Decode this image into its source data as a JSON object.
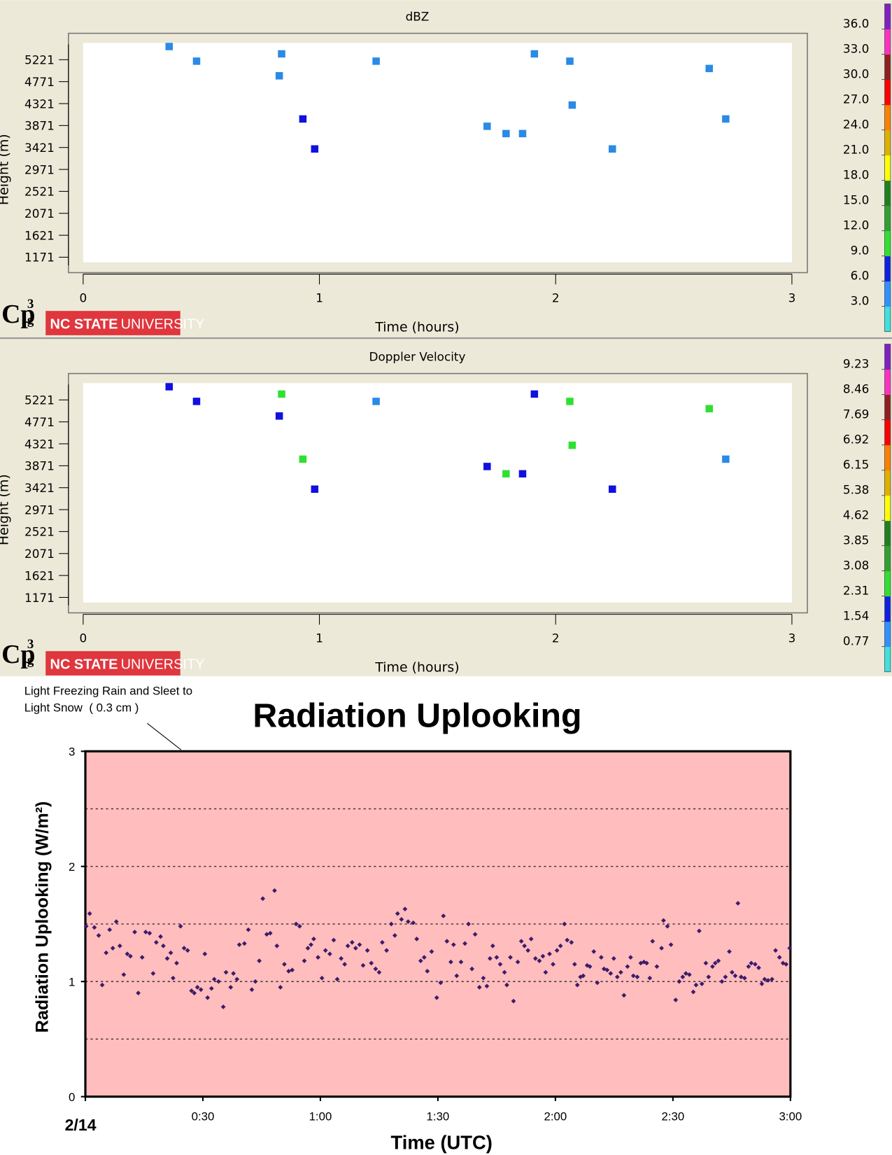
{
  "chart_data": [
    {
      "type": "scatter",
      "title": "dBZ",
      "xlabel": "Time (hours)",
      "ylabel": "Height (m)",
      "xlim": [
        0,
        3
      ],
      "xticks": [
        0,
        1,
        2,
        3
      ],
      "ylim": [
        1066,
        5566
      ],
      "yticks": [
        1171,
        1621,
        2071,
        2521,
        2971,
        3421,
        3871,
        4321,
        4771,
        5221
      ],
      "x": [
        0.364,
        0.48,
        0.84,
        0.83,
        0.93,
        0.98,
        1.24,
        1.71,
        1.79,
        1.86,
        1.91,
        2.06,
        2.07,
        2.24,
        2.65,
        2.72
      ],
      "values": [
        5491,
        5191,
        5341,
        4891,
        4006,
        3391,
        5191,
        3856,
        3706,
        3706,
        5341,
        5191,
        4291,
        3391,
        5041,
        4006
      ],
      "point_colors": [
        "#2a8ae6",
        "#2a8ae6",
        "#2a8ae6",
        "#2a8ae6",
        "#1010e0",
        "#1010e0",
        "#2a8ae6",
        "#2a8ae6",
        "#2a8ae6",
        "#2a8ae6",
        "#2a8ae6",
        "#2a8ae6",
        "#2a8ae6",
        "#2a8ae6",
        "#2a8ae6",
        "#2a8ae6"
      ],
      "colorbar": {
        "clim": [
          0,
          39
        ],
        "colors": [
          "#40e0e0",
          "#3090ff",
          "#1020e0",
          "#30e030",
          "#30a030",
          "#208020",
          "#ffff00",
          "#e0b000",
          "#ff8000",
          "#ff0000",
          "#902020",
          "#ff30c0",
          "#8020c0"
        ],
        "ticks": [
          {
            "value": 3,
            "label": "3.0"
          },
          {
            "value": 6,
            "label": "6.0"
          },
          {
            "value": 9,
            "label": "9.0"
          },
          {
            "value": 12,
            "label": "12.0"
          },
          {
            "value": 15,
            "label": "15.0"
          },
          {
            "value": 18,
            "label": "18.0"
          },
          {
            "value": 21,
            "label": "21.0"
          },
          {
            "value": 24,
            "label": "24.0"
          },
          {
            "value": 27,
            "label": "27.0"
          },
          {
            "value": 30,
            "label": "30.0"
          },
          {
            "value": 33,
            "label": "33.0"
          },
          {
            "value": 36,
            "label": "36.0"
          }
        ]
      }
    },
    {
      "type": "scatter",
      "title": "Doppler Velocity",
      "xlabel": "Time (hours)",
      "ylabel": "Height (m)",
      "xlim": [
        0,
        3
      ],
      "xticks": [
        0,
        1,
        2,
        3
      ],
      "ylim": [
        1066,
        5566
      ],
      "yticks": [
        1171,
        1621,
        2071,
        2521,
        2971,
        3421,
        3871,
        4321,
        4771,
        5221
      ],
      "x": [
        0.364,
        0.48,
        0.84,
        0.83,
        0.93,
        0.98,
        1.24,
        1.71,
        1.79,
        1.86,
        1.91,
        2.06,
        2.07,
        2.24,
        2.65,
        2.72
      ],
      "values": [
        5491,
        5191,
        5341,
        4891,
        4006,
        3391,
        5191,
        3856,
        3706,
        3706,
        5341,
        5191,
        4291,
        3391,
        5041,
        4006
      ],
      "point_colors": [
        "#1010e0",
        "#1010e0",
        "#30e030",
        "#1010e0",
        "#30e030",
        "#1010e0",
        "#2a8ae6",
        "#1010e0",
        "#30e030",
        "#1010e0",
        "#1010e0",
        "#30e030",
        "#30e030",
        "#1010e0",
        "#30e030",
        "#2a8ae6"
      ],
      "colorbar": {
        "clim": [
          0,
          10
        ],
        "colors": [
          "#40e0e0",
          "#3090ff",
          "#1020e0",
          "#30e030",
          "#30a030",
          "#208020",
          "#ffff00",
          "#e0b000",
          "#ff8000",
          "#ff0000",
          "#902020",
          "#ff30c0",
          "#8020c0"
        ],
        "ticks": [
          0.77,
          1.54,
          2.31,
          3.08,
          3.85,
          4.62,
          5.38,
          6.15,
          6.92,
          7.69,
          8.46,
          9.23
        ]
      }
    },
    {
      "type": "scatter",
      "title": "Radiation Uplooking",
      "xlabel": "Time (UTC)",
      "ylabel": "Radiation Uplooking (W/m²)",
      "annotation": [
        "Light Freezing Rain and Sleet to",
        "Light Snow  ( 0.3 cm )"
      ],
      "xlim": [
        0,
        180
      ],
      "xticks": [
        {
          "value": 0,
          "label": "2/14"
        },
        {
          "value": 30,
          "label": "0:30"
        },
        {
          "value": 60,
          "label": "1:00"
        },
        {
          "value": 90,
          "label": "1:30"
        },
        {
          "value": 120,
          "label": "2:00"
        },
        {
          "value": 150,
          "label": "2:30"
        },
        {
          "value": 180,
          "label": "3:00"
        }
      ],
      "ylim": [
        0,
        3
      ],
      "yticks": [
        0,
        1,
        2,
        3
      ],
      "grid_lines": [
        0.5,
        1,
        1.5,
        2,
        2.5
      ],
      "color": "#3b1c6b",
      "background": "#ffbdbd",
      "x": [
        0.2,
        1.1,
        2.3,
        3.4,
        4.3,
        5.3,
        6.2,
        7.0,
        7.9,
        8.8,
        9.8,
        10.7,
        11.5,
        12.6,
        13.5,
        14.5,
        15.4,
        16.4,
        17.3,
        18.1,
        19.2,
        19.9,
        20.9,
        21.8,
        22.4,
        23.3,
        24.3,
        25.2,
        26.1,
        27.1,
        27.8,
        28.6,
        29.5,
        30.5,
        31.2,
        32.2,
        32.9,
        34.0,
        35.2,
        35.9,
        37.1,
        37.8,
        38.7,
        39.3,
        40.6,
        41.6,
        42.5,
        43.4,
        44.4,
        45.3,
        46.3,
        47.2,
        48.3,
        48.9,
        49.8,
        50.8,
        51.9,
        52.8,
        53.8,
        54.7,
        55.9,
        56.8,
        57.6,
        58.3,
        59.4,
        60.4,
        61.3,
        62.4,
        63.4,
        64.3,
        65.3,
        66.2,
        67.0,
        68.1,
        69.0,
        70.0,
        70.9,
        72.0,
        73.0,
        74.1,
        75.0,
        75.8,
        76.9,
        78.1,
        79.0,
        79.7,
        80.7,
        81.6,
        82.4,
        83.7,
        84.6,
        85.6,
        86.5,
        87.3,
        88.4,
        89.7,
        90.7,
        91.4,
        92.3,
        93.3,
        94.0,
        94.8,
        95.9,
        96.9,
        97.8,
        98.7,
        99.5,
        100.6,
        101.6,
        102.5,
        103.3,
        104.0,
        105.0,
        105.9,
        107.0,
        107.6,
        108.5,
        109.3,
        110.4,
        111.3,
        112.1,
        113.0,
        113.8,
        114.9,
        115.9,
        116.8,
        117.5,
        118.5,
        119.4,
        120.4,
        121.3,
        122.3,
        123.0,
        124.1,
        124.9,
        125.6,
        126.4,
        127.1,
        128.1,
        128.8,
        129.8,
        130.7,
        131.7,
        132.4,
        133.2,
        134.1,
        134.9,
        135.8,
        136.7,
        137.5,
        138.4,
        139.2,
        139.9,
        140.9,
        141.8,
        142.6,
        143.3,
        144.1,
        144.8,
        145.9,
        147.1,
        147.6,
        148.6,
        149.5,
        150.7,
        151.6,
        152.5,
        153.3,
        154.2,
        155.2,
        155.9,
        156.7,
        157.4,
        158.4,
        159.1,
        160.1,
        160.8,
        161.6,
        162.5,
        163.4,
        164.4,
        165.1,
        165.9,
        166.6,
        167.4,
        168.3,
        169.3,
        170.0,
        171.0,
        171.9,
        172.7,
        173.4,
        174.3,
        175.3,
        176.2,
        177.2,
        178.1,
        178.9,
        179.8
      ],
      "values": [
        1.48,
        1.59,
        1.47,
        1.4,
        0.97,
        1.25,
        1.45,
        1.29,
        1.52,
        1.31,
        1.06,
        1.24,
        1.22,
        1.43,
        0.9,
        1.21,
        1.43,
        1.42,
        1.07,
        1.34,
        1.39,
        1.31,
        1.2,
        1.25,
        1.03,
        1.16,
        1.48,
        1.29,
        1.27,
        0.92,
        0.9,
        0.95,
        0.93,
        1.24,
        0.86,
        0.94,
        1.02,
        1.0,
        0.78,
        1.08,
        0.95,
        1.07,
        1.02,
        1.32,
        1.33,
        1.45,
        0.93,
        1.0,
        1.18,
        1.72,
        1.41,
        1.42,
        1.79,
        1.31,
        0.95,
        1.15,
        1.09,
        1.1,
        1.5,
        1.48,
        1.18,
        1.29,
        1.32,
        1.37,
        1.21,
        1.03,
        1.27,
        1.24,
        1.36,
        1.02,
        1.2,
        1.15,
        1.31,
        1.34,
        1.29,
        1.32,
        1.14,
        1.27,
        1.16,
        1.11,
        1.08,
        1.34,
        1.27,
        1.5,
        1.4,
        1.59,
        1.54,
        1.63,
        1.52,
        1.51,
        1.37,
        1.18,
        1.21,
        1.09,
        1.26,
        0.86,
        0.99,
        1.57,
        1.35,
        1.17,
        1.32,
        1.05,
        1.17,
        1.33,
        1.5,
        1.11,
        1.41,
        0.95,
        1.03,
        0.96,
        1.2,
        1.31,
        1.21,
        1.15,
        1.08,
        0.97,
        1.21,
        0.83,
        1.17,
        1.35,
        1.31,
        1.27,
        1.37,
        1.2,
        1.18,
        1.22,
        1.08,
        1.24,
        1.15,
        1.27,
        1.31,
        1.5,
        1.36,
        1.34,
        1.15,
        0.97,
        1.04,
        1.05,
        1.14,
        1.13,
        1.26,
        0.99,
        1.21,
        1.11,
        1.1,
        1.07,
        1.2,
        1.04,
        1.08,
        0.88,
        1.13,
        1.21,
        1.05,
        1.04,
        1.16,
        1.17,
        1.16,
        1.03,
        1.35,
        1.13,
        1.29,
        1.53,
        1.48,
        1.32,
        0.84,
        1.0,
        1.04,
        1.07,
        1.06,
        0.91,
        0.97,
        1.44,
        0.98,
        1.16,
        1.04,
        1.13,
        1.16,
        1.18,
        1.0,
        1.04,
        1.26,
        1.08,
        1.05,
        1.68,
        1.04,
        1.03,
        1.13,
        1.16,
        1.15,
        1.12,
        0.98,
        1.02,
        1.01,
        1.02,
        1.27,
        1.21,
        1.16,
        1.15,
        1.29
      ]
    }
  ],
  "logo": {
    "mark": "Cp",
    "sup": "3",
    "sub": "g",
    "name_bold": "NC STATE",
    "name_light": "UNIVERSITY"
  }
}
